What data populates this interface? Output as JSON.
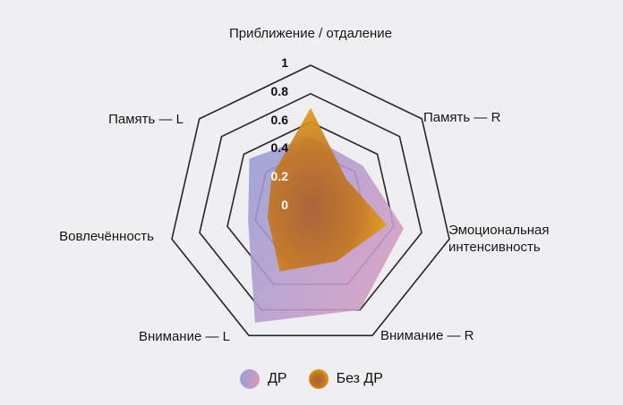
{
  "chart_data": {
    "type": "radar",
    "title": "",
    "categories": [
      "Приближение / отдаление",
      "Память — R",
      "Эмоциональная интенсивность",
      "Внимание — R",
      "Внимание — L",
      "Вовлечённость",
      "Память — L"
    ],
    "series": [
      {
        "name": "ДР",
        "values": [
          0.5,
          0.47,
          0.67,
          0.8,
          0.9,
          0.45,
          0.55
        ],
        "gradient": [
          "#999cd6",
          "#d99cc0"
        ],
        "opacity": 0.88
      },
      {
        "name": "Без ДР",
        "values": [
          0.7,
          0.32,
          0.55,
          0.42,
          0.5,
          0.31,
          0.35
        ],
        "gradient": [
          "#a85f2e",
          "#c4761f",
          "#f2b316"
        ],
        "opacity": 0.92
      }
    ],
    "ticks": [
      "0",
      "0.2",
      "0.4",
      "0.6",
      "0.8",
      "1"
    ],
    "rings": [
      0.2,
      0.4,
      0.6,
      0.8,
      1
    ],
    "rlim": [
      0,
      1
    ],
    "grid": "concentric heptagons, no radial spokes",
    "legend_position": "bottom-center"
  },
  "colors": {
    "background": "#efeff1",
    "grid_line": "#262626",
    "tick_dark": "#0d0d0d",
    "tick_light": "#ffffff",
    "label_text": "#111111"
  }
}
